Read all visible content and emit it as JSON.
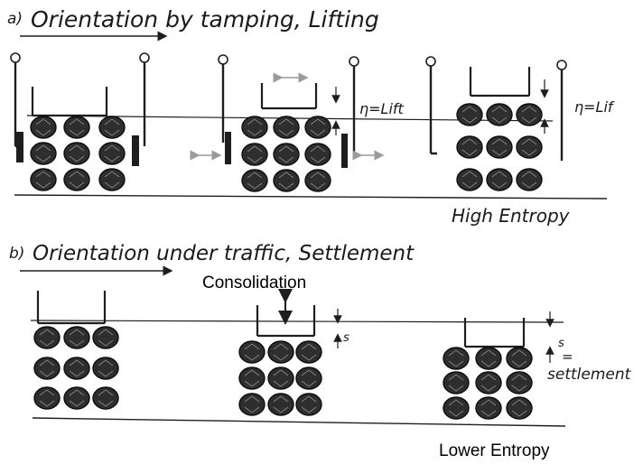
{
  "section_a": {
    "label": "a)",
    "heading": "Orientation by tamping, Lifting",
    "lift_label_1": "η=Lift",
    "lift_label_2": "η=Lif",
    "caption": "High Entropy"
  },
  "section_b": {
    "label": "b)",
    "heading": "Orientation under traffic, Settlement",
    "consolidation_label": "Consolidation",
    "s_label_1": "s",
    "s_label_2": "s",
    "settlement_eq": "=",
    "settlement_word": "settlement",
    "caption": "Lower Entropy"
  },
  "colors": {
    "ink": "#1e1e1e",
    "stone_fill": "#2e2e2e",
    "arrow_grey": "#9a9a9a"
  },
  "icons": [
    "tamping-tine-icon",
    "ballast-stone-icon",
    "arrow-icon"
  ]
}
